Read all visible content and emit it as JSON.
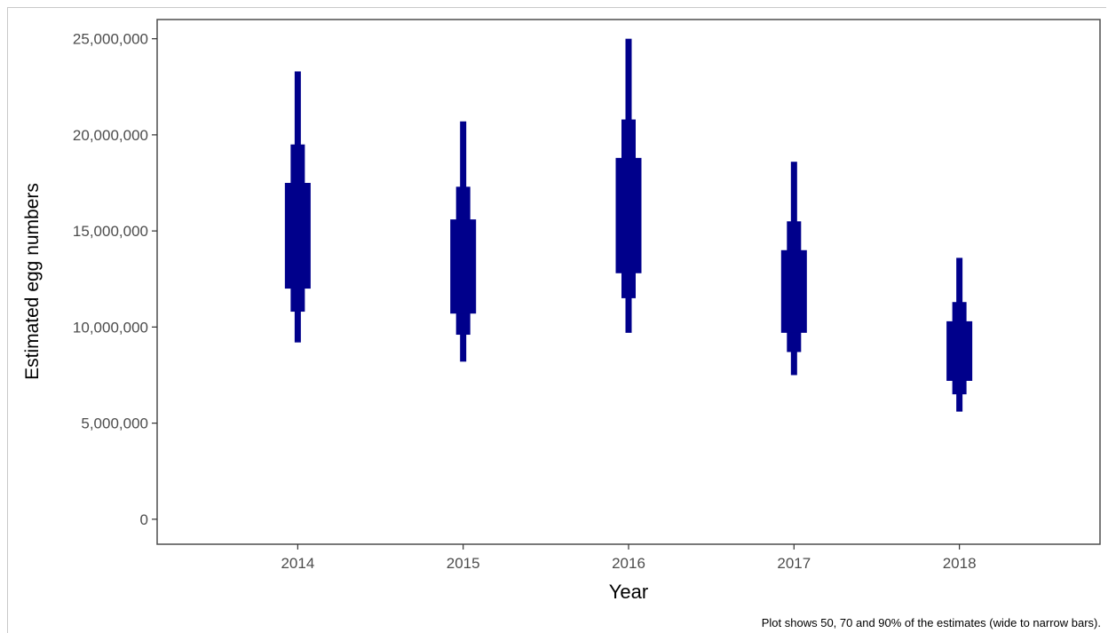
{
  "chart_data": {
    "type": "interval",
    "title": "",
    "xlabel": "Year",
    "ylabel": "Estimated egg numbers",
    "caption": "Plot shows 50, 70 and 90% of the estimates (wide to narrow bars).",
    "categories": [
      "2014",
      "2015",
      "2016",
      "2017",
      "2018"
    ],
    "ylim": [
      -1300000,
      26000000
    ],
    "y_ticks": [
      0,
      5000000,
      10000000,
      15000000,
      20000000,
      25000000
    ],
    "y_tick_labels": [
      "0",
      "5,000,000",
      "10,000,000",
      "15,000,000",
      "20,000,000",
      "25,000,000"
    ],
    "interval_levels": [
      "50%",
      "70%",
      "90%"
    ],
    "intervals": [
      {
        "year": "2014",
        "p50": [
          12000000,
          17500000
        ],
        "p70": [
          10800000,
          19500000
        ],
        "p90": [
          9200000,
          23300000
        ]
      },
      {
        "year": "2015",
        "p50": [
          10700000,
          15600000
        ],
        "p70": [
          9600000,
          17300000
        ],
        "p90": [
          8200000,
          20700000
        ]
      },
      {
        "year": "2016",
        "p50": [
          12800000,
          18800000
        ],
        "p70": [
          11500000,
          20800000
        ],
        "p90": [
          9700000,
          25000000
        ]
      },
      {
        "year": "2017",
        "p50": [
          9700000,
          14000000
        ],
        "p70": [
          8700000,
          15500000
        ],
        "p90": [
          7500000,
          18600000
        ]
      },
      {
        "year": "2018",
        "p50": [
          7200000,
          10300000
        ],
        "p70": [
          6500000,
          11300000
        ],
        "p90": [
          5600000,
          13600000
        ]
      }
    ],
    "grid": false,
    "legend": "none",
    "colors": {
      "bars": "#00008b",
      "panel_border": "#4d4d4d",
      "tick_text": "#4d4d4d"
    }
  }
}
